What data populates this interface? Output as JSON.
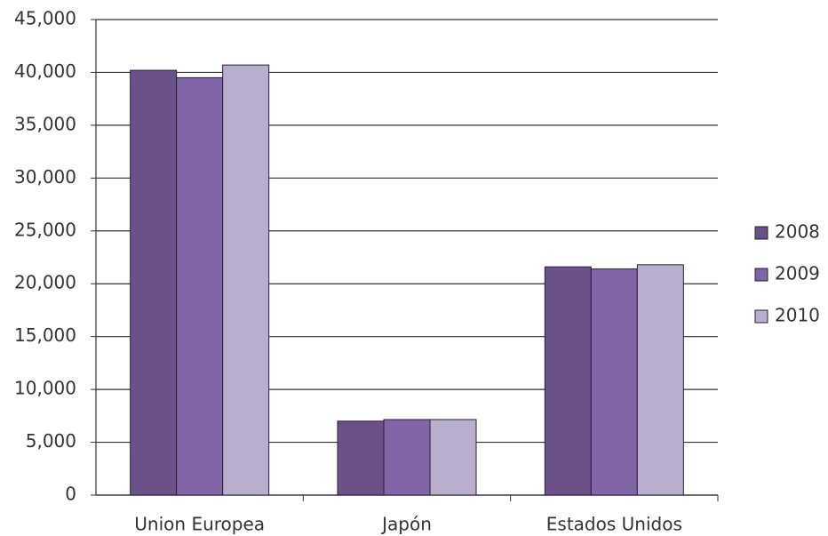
{
  "chart_data": {
    "type": "bar",
    "categories": [
      "Union Europea",
      "Japón",
      "Estados Unidos"
    ],
    "series": [
      {
        "name": "2008",
        "color": "#6a5189",
        "values": [
          40200,
          7000,
          21600
        ]
      },
      {
        "name": "2009",
        "color": "#8066a6",
        "values": [
          39500,
          7150,
          21400
        ]
      },
      {
        "name": "2010",
        "color": "#b9aecd",
        "values": [
          40700,
          7150,
          21800
        ]
      }
    ],
    "ylim": [
      0,
      45000
    ],
    "yticks": [
      0,
      {
        "value": 5000,
        "label": "5,000"
      },
      {
        "value": 10000,
        "label": "10,000"
      },
      {
        "value": 15000,
        "label": "15,000"
      },
      {
        "value": 20000,
        "label": "20,000"
      },
      {
        "value": 25000,
        "label": "25,000"
      },
      {
        "value": 30000,
        "label": "30,000"
      },
      {
        "value": 35000,
        "label": "35,000"
      },
      {
        "value": 40000,
        "label": "40,000"
      },
      {
        "value": 45000,
        "label": "45,000"
      }
    ],
    "grid": true,
    "legend": "right"
  }
}
